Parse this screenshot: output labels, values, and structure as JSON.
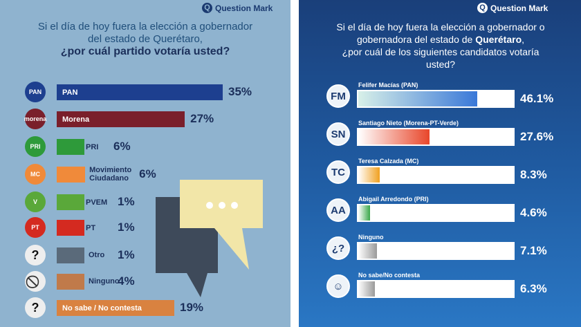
{
  "chart_data": [
    {
      "type": "bar",
      "orientation": "horizontal",
      "brand": "Question Mark",
      "title_lines": [
        "Si el día de hoy fuera la elección a gobernador",
        "del estado de Querétaro,"
      ],
      "title_emphasis": "¿por cuál partido votaría usted?",
      "categories": [
        "PAN",
        "Morena",
        "PRI",
        "Movimiento Ciudadano",
        "PVEM",
        "PT",
        "Otro",
        "Ninguno",
        "No sabe / No contesta"
      ],
      "values": [
        35,
        27,
        6,
        6,
        1,
        1,
        1,
        4,
        19
      ],
      "value_labels": [
        "35%",
        "27%",
        "6%",
        "6%",
        "1%",
        "1%",
        "1%",
        "4%",
        "19%"
      ],
      "logo_labels": [
        "PAN",
        "morena",
        "PRI",
        "MC",
        "V",
        "PT",
        "?",
        "⃠",
        "?"
      ],
      "colors": [
        "#1d3f8f",
        "#7a1f2b",
        "#2e9a3a",
        "#f08a3a",
        "#5aa83a",
        "#d42a20",
        "#5a6a7a",
        "#c07a4a",
        "#d98240"
      ],
      "unit": "%",
      "xlim": [
        0,
        35
      ]
    },
    {
      "type": "bar",
      "orientation": "horizontal",
      "brand": "Question Mark",
      "title_lines": [
        "Si el día de hoy fuera la elección a gobernador o",
        "gobernadora del estado de"
      ],
      "title_emphasis": "Querétaro",
      "title_tail": [
        "¿por cuál de los siguientes candidatos votaría",
        "usted?"
      ],
      "categories": [
        "Felifer Macías (PAN)",
        "Santiago Nieto (Morena-PT-Verde)",
        "Teresa Calzada (MC)",
        "Abigail Arredondo (PRI)",
        "Ninguno",
        "No sabe/No contesta"
      ],
      "values": [
        46.1,
        27.6,
        8.3,
        4.6,
        7.1,
        6.3
      ],
      "value_labels": [
        "46.1%",
        "27.6%",
        "8.3%",
        "4.6%",
        "7.1%",
        "6.3%"
      ],
      "avatar_labels": [
        "FM",
        "SN",
        "TC",
        "AA",
        "¿?",
        "☺"
      ],
      "colors": [
        "#3a78d8",
        "#e8462a",
        "#f0a020",
        "#3aa84a",
        "#9a9a9a",
        "#9a9a9a"
      ],
      "unit": "%",
      "xlim": [
        0,
        60
      ]
    }
  ]
}
